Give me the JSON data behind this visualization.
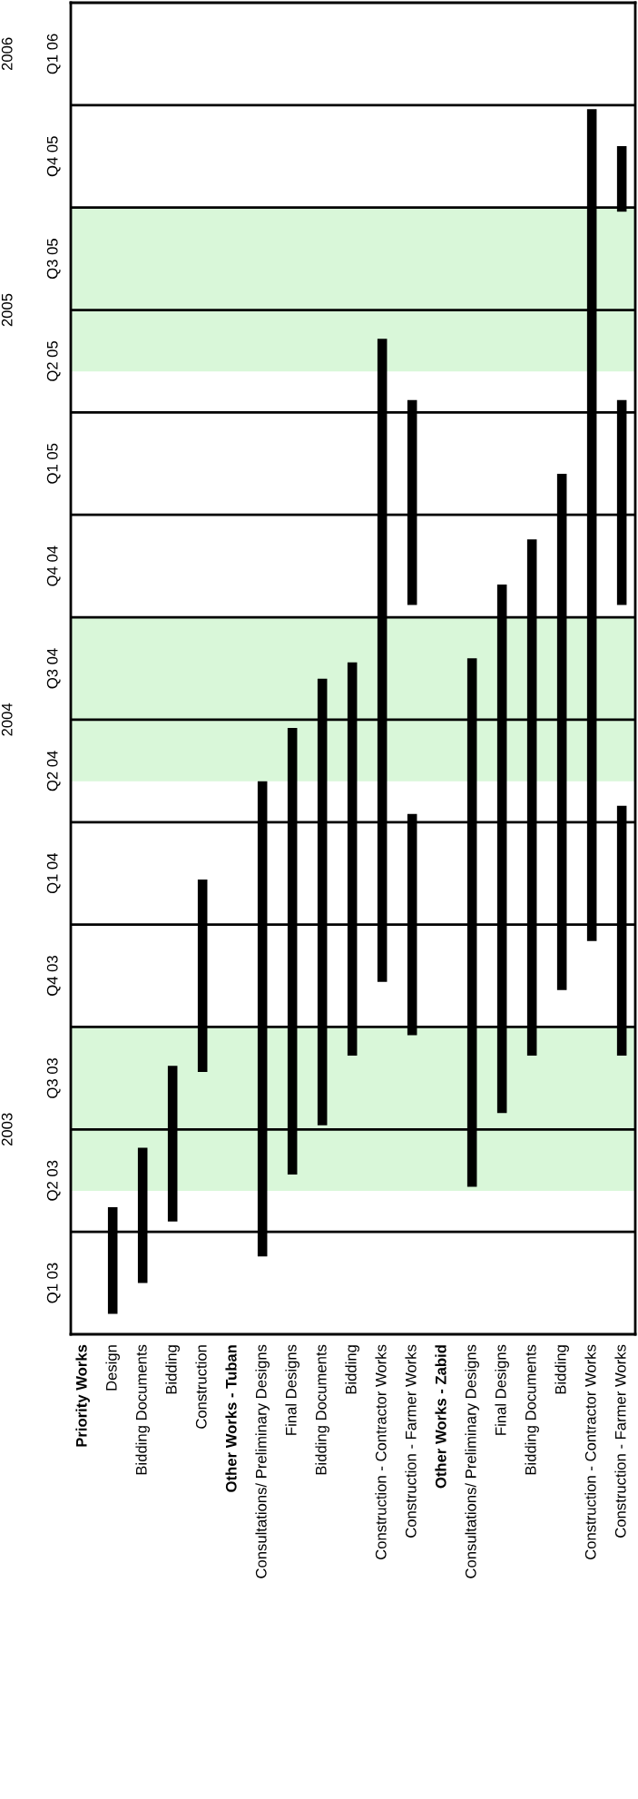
{
  "chart_data": {
    "type": "bar",
    "categories": [
      "Priority Works",
      "Design",
      "Bidding Documents",
      "Bidding",
      "Construction",
      "Other Works - Tuban",
      "Consultations/ Preliminary Designs",
      "Final Designs",
      "Bidding Documents",
      "Bidding",
      "Construction - Contractor Works",
      "Construction - Farmer Works",
      "Other Works - Zabid",
      "Consultations/ Preliminary Designs",
      "Final Designs",
      "Bidding Documents",
      "Bidding",
      "Construction - Contractor Works",
      "Construction - Farmer Works"
    ],
    "series": [
      {
        "color": "#000000",
        "base": [
          null,
          2003.05,
          2003.125,
          2003.275,
          2003.64,
          null,
          2003.19,
          2003.39,
          2003.51,
          2003.68,
          2003.86,
          2003.73,
          null,
          2003.36,
          2003.54,
          2003.68,
          2003.84,
          2003.96,
          2003.68
        ],
        "values": [
          null,
          0.26,
          0.33,
          0.38,
          0.47,
          null,
          1.16,
          1.09,
          1.09,
          0.96,
          1.57,
          0.54,
          null,
          1.29,
          1.29,
          1.26,
          1.26,
          2.03,
          0.61
        ]
      },
      {
        "color": "#000000",
        "base": [
          null,
          null,
          null,
          null,
          null,
          null,
          null,
          null,
          null,
          null,
          null,
          2004.78,
          null,
          null,
          null,
          null,
          null,
          null,
          2004.78
        ],
        "values": [
          null,
          null,
          null,
          null,
          null,
          null,
          null,
          null,
          null,
          null,
          null,
          0.5,
          null,
          null,
          null,
          null,
          null,
          null,
          0.5
        ]
      },
      {
        "color": "#000000",
        "base": [
          null,
          null,
          null,
          null,
          null,
          null,
          null,
          null,
          null,
          null,
          null,
          null,
          null,
          null,
          null,
          null,
          null,
          null,
          2005.74
        ],
        "values": [
          null,
          null,
          null,
          null,
          null,
          null,
          null,
          null,
          null,
          null,
          null,
          null,
          null,
          null,
          null,
          null,
          null,
          null,
          0.16
        ]
      }
    ],
    "ylim": [
      2003,
      2006.25
    ],
    "yticks": [
      {
        "value": 2003.5,
        "label": "2003"
      },
      {
        "value": 2004.5,
        "label": "2004"
      },
      {
        "value": 2005.5,
        "label": "2005"
      },
      {
        "value": 2006.125,
        "label": "2006"
      }
    ],
    "annotations": [
      "Q1 03",
      "Q2 03",
      "Q3 03",
      "Q4 03",
      "Q1 04",
      "Q2 04",
      "Q3 04",
      "Q4 04",
      "Q1 05",
      "Q2 05",
      "Q3 05",
      "Q4 05",
      "Q1 06"
    ],
    "ref_lines": [
      {
        "axis": "y",
        "value": 2003.25,
        "label": null,
        "color": "#000000"
      },
      {
        "axis": "y",
        "value": 2003.5,
        "label": null,
        "color": "#000000"
      },
      {
        "axis": "y",
        "value": 2003.75,
        "label": null,
        "color": "#000000"
      },
      {
        "axis": "y",
        "value": 2004,
        "label": null,
        "color": "#000000"
      },
      {
        "axis": "y",
        "value": 2004.25,
        "label": null,
        "color": "#000000"
      },
      {
        "axis": "y",
        "value": 2004.5,
        "label": null,
        "color": "#000000"
      },
      {
        "axis": "y",
        "value": 2004.75,
        "label": null,
        "color": "#000000"
      },
      {
        "axis": "y",
        "value": 2005,
        "label": null,
        "color": "#000000"
      },
      {
        "axis": "y",
        "value": 2005.25,
        "label": null,
        "color": "#000000"
      },
      {
        "axis": "y",
        "value": 2005.5,
        "label": null,
        "color": "#000000"
      },
      {
        "axis": "y",
        "value": 2005.75,
        "label": null,
        "color": "#000000"
      },
      {
        "axis": "y",
        "value": 2006,
        "label": null,
        "color": "#000000"
      }
    ],
    "bands": [
      {
        "axis": "y",
        "from": 2003.35,
        "to": 2003.75,
        "label": null,
        "color": "#d9f7d9"
      },
      {
        "axis": "y",
        "from": 2004.35,
        "to": 2004.75,
        "label": null,
        "color": "#d9f7d9"
      },
      {
        "axis": "y",
        "from": 2005.35,
        "to": 2005.75,
        "label": null,
        "color": "#d9f7d9"
      }
    ]
  }
}
